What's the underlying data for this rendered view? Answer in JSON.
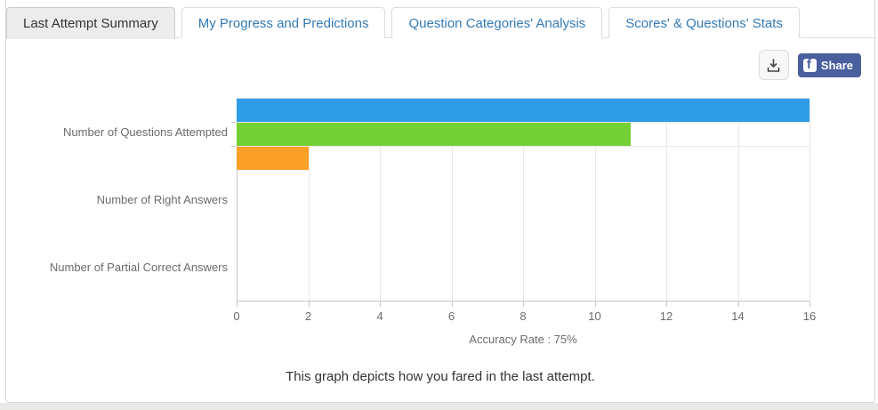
{
  "tabs": [
    {
      "label": "Last Attempt Summary",
      "active": true
    },
    {
      "label": "My Progress and Predictions",
      "active": false
    },
    {
      "label": "Question Categories' Analysis",
      "active": false
    },
    {
      "label": "Scores' & Questions' Stats",
      "active": false
    }
  ],
  "toolbar": {
    "share_label": "Share",
    "facebook_color": "#4a5f9e"
  },
  "chart_data": {
    "type": "bar",
    "orientation": "horizontal",
    "title": "",
    "categories": [
      "Number of Questions Attempted",
      "Number of Right Answers",
      "Number of Partial Correct Answers"
    ],
    "values": [
      16,
      11,
      2
    ],
    "bar_colors": [
      "#2f9ce8",
      "#74cf35",
      "#fba026"
    ],
    "xlim": [
      0,
      16
    ],
    "xticks": [
      0,
      2,
      4,
      6,
      8,
      10,
      12,
      14,
      16
    ],
    "xlabel": "Accuracy Rate : 75%",
    "grid": "on",
    "legend": "none"
  },
  "caption": "This graph depicts how you fared in the last attempt."
}
